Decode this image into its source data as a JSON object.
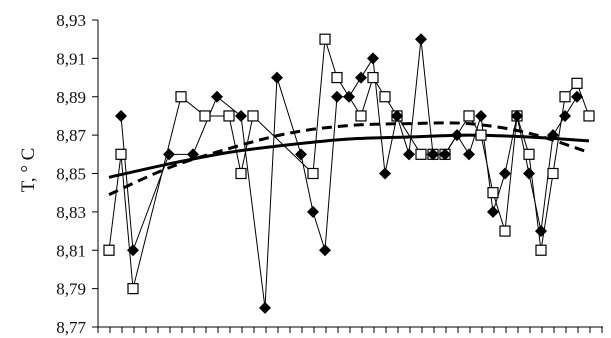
{
  "chart_data": {
    "type": "line",
    "ylabel": "T, ° C",
    "xlabel": "",
    "ylim": [
      8.77,
      8.93
    ],
    "yticks": [
      "8,77",
      "8,79",
      "8,81",
      "8,83",
      "8,85",
      "8,87",
      "8,89",
      "8,91",
      "8,93"
    ],
    "x_count": 42,
    "grid": false,
    "series": [
      {
        "marker": "square",
        "color": "#000000",
        "x": [
          0,
          1,
          2,
          6,
          8,
          10,
          11,
          12,
          17,
          18,
          19,
          21,
          22,
          23,
          24,
          26,
          27,
          28,
          30,
          31,
          32,
          33,
          34,
          35,
          36,
          37,
          38,
          39,
          40
        ],
        "values": [
          8.81,
          8.86,
          8.79,
          8.89,
          8.88,
          8.88,
          8.85,
          8.88,
          8.85,
          8.92,
          8.9,
          8.88,
          8.9,
          8.89,
          8.88,
          8.86,
          8.86,
          8.86,
          8.88,
          8.87,
          8.84,
          8.82,
          8.88,
          8.86,
          8.81,
          8.85,
          8.89,
          8.897,
          8.88
        ]
      },
      {
        "marker": "diamond",
        "color": "#000000",
        "x": [
          1,
          2,
          5,
          7,
          9,
          11,
          13,
          14,
          16,
          17,
          18,
          19,
          20,
          21,
          22,
          23,
          24,
          25,
          26,
          27,
          28,
          29,
          30,
          31,
          32,
          33,
          34,
          35,
          36,
          37,
          38,
          39
        ],
        "values": [
          8.88,
          8.81,
          8.86,
          8.86,
          8.89,
          8.88,
          8.78,
          8.9,
          8.86,
          8.83,
          8.81,
          8.89,
          8.89,
          8.9,
          8.91,
          8.85,
          8.88,
          8.86,
          8.92,
          8.86,
          8.86,
          8.87,
          8.86,
          8.88,
          8.83,
          8.85,
          8.88,
          8.85,
          8.82,
          8.87,
          8.88,
          8.89
        ]
      },
      {
        "style": "solid-trend",
        "color": "#000000",
        "x": [
          0,
          5,
          10,
          15,
          20,
          25,
          30,
          35,
          40
        ],
        "values": [
          8.848,
          8.855,
          8.861,
          8.865,
          8.868,
          8.869,
          8.87,
          8.869,
          8.867
        ]
      },
      {
        "style": "dashed-trend",
        "color": "#000000",
        "x": [
          0,
          5,
          10,
          15,
          20,
          25,
          30,
          35,
          40
        ],
        "values": [
          8.839,
          8.853,
          8.863,
          8.871,
          8.875,
          8.876,
          8.876,
          8.871,
          8.861
        ]
      }
    ]
  }
}
